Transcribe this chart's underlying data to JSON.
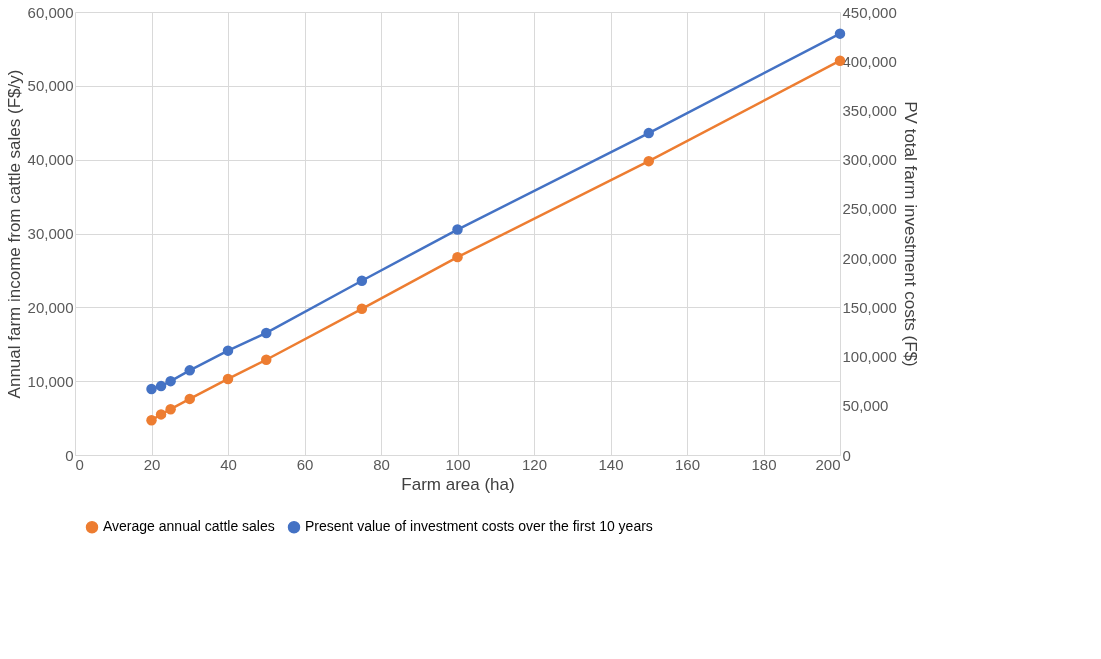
{
  "chart_data": {
    "type": "line",
    "xlabel": "Farm area (ha)",
    "ylabel": "Annual farm income from cattle sales (F$/y)",
    "y2label": "PV total farm investment costs (F$)",
    "x": [
      20,
      22.5,
      25,
      30,
      40,
      50,
      75,
      100,
      150,
      200
    ],
    "series": [
      {
        "name": "Average annual cattle sales",
        "color": "#ed7d31",
        "values": [
          4700,
          5500,
          6200,
          7600,
          10300,
          12900,
          19800,
          26800,
          39800,
          53400
        ]
      },
      {
        "name": "Present value of investment costs over the first 10 years",
        "color": "#4472c4",
        "axis": "y2",
        "values": [
          67000,
          70000,
          75000,
          86000,
          106000,
          124000,
          177000,
          229000,
          327000,
          428000
        ]
      }
    ],
    "xlim": [
      0,
      200
    ],
    "xticks": [
      0,
      20,
      40,
      60,
      80,
      100,
      120,
      140,
      160,
      180,
      200
    ],
    "ylim": [
      0,
      60000
    ],
    "yticks": [
      0,
      {
        "value": 10000,
        "label": "10,000"
      },
      {
        "value": 20000,
        "label": "20,000"
      },
      {
        "value": 30000,
        "label": "30,000"
      },
      {
        "value": 40000,
        "label": "40,000"
      },
      {
        "value": 50000,
        "label": "50,000"
      },
      {
        "value": 60000,
        "label": "60,000"
      }
    ],
    "y2lim": [
      0,
      450000
    ],
    "y2ticks": [
      0,
      {
        "value": 50000,
        "label": "50,000"
      },
      {
        "value": 100000,
        "label": "100,000"
      },
      {
        "value": 150000,
        "label": "150,000"
      },
      {
        "value": 200000,
        "label": "200,000"
      },
      {
        "value": 250000,
        "label": "250,000"
      },
      {
        "value": 300000,
        "label": "300,000"
      },
      {
        "value": 350000,
        "label": "350,000"
      },
      {
        "value": 400000,
        "label": "400,000"
      },
      {
        "value": 450000,
        "label": "450,000"
      }
    ],
    "grid": true,
    "legend": "bottom",
    "marker": "circle",
    "line_style": "solid"
  }
}
